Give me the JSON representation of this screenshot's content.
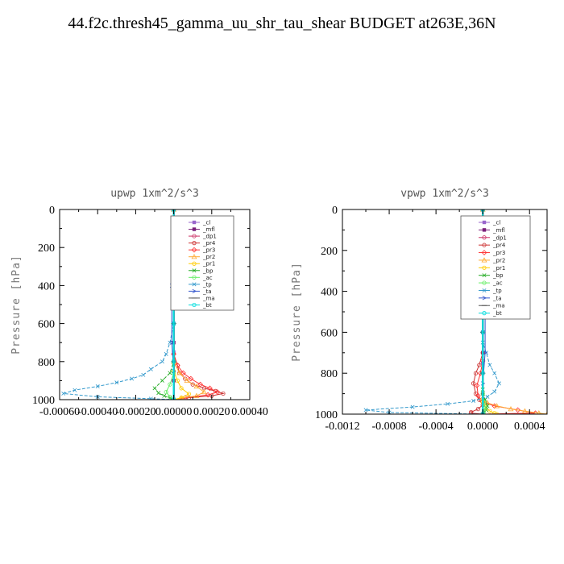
{
  "title": "44.f2c.thresh45_gamma_uu_shr_tau_shear  BUDGET at263E,36N",
  "chart_data": [
    {
      "type": "line",
      "title": "upwp   1xm^2/s^3",
      "xlabel": "",
      "ylabel": "Pressure  [hPa]",
      "xlim": [
        -0.0006,
        0.0004
      ],
      "ylim": [
        1000,
        0
      ],
      "xticks": [
        -0.0006,
        -0.0004,
        -0.0002,
        0.0,
        0.0002,
        0.0004
      ],
      "xtick_labels": [
        "-0.00060",
        "-0.00040",
        "-0.00020",
        "0.00000",
        "0.00020",
        "0.00040"
      ],
      "yticks": [
        0,
        200,
        400,
        600,
        800,
        1000
      ],
      "ytick_labels": [
        "0",
        "200",
        "400",
        "600",
        "800",
        "1000"
      ],
      "legend_position": "top-right",
      "series": [
        {
          "name": "_cl",
          "color": "#9966cc",
          "marker": "square",
          "x": [
            0,
            0,
            0,
            0,
            0,
            0,
            0,
            0
          ],
          "y": [
            0,
            150,
            300,
            450,
            600,
            750,
            900,
            1000
          ]
        },
        {
          "name": "_mfl",
          "color": "#7a1f7a",
          "marker": "square",
          "x": [
            0,
            0,
            0,
            0,
            0,
            0,
            0,
            0,
            0,
            0,
            0
          ],
          "y": [
            0,
            100,
            200,
            300,
            400,
            500,
            600,
            700,
            800,
            900,
            1000
          ]
        },
        {
          "name": "_dp1",
          "color": "#cc3366",
          "marker": "circle",
          "x": [
            0,
            0,
            0,
            0,
            0,
            0
          ],
          "y": [
            0,
            200,
            400,
            600,
            800,
            1000
          ]
        },
        {
          "name": "_pr4",
          "color": "#cc3333",
          "marker": "circle",
          "x": [
            0,
            0,
            0,
            0,
            2e-05,
            3e-05,
            6e-05,
            0.0001,
            0.00016,
            0.00022,
            0.00026,
            0.0002,
            8e-05,
            0
          ],
          "y": [
            0,
            200,
            500,
            760,
            820,
            860,
            890,
            920,
            940,
            955,
            968,
            980,
            990,
            1000
          ]
        },
        {
          "name": "_pr3",
          "color": "#ff3333",
          "marker": "diamond",
          "x": [
            0,
            0,
            2e-05,
            5e-05,
            9e-05,
            0.00014,
            0.00019,
            0.00023,
            0.00018,
            6e-05,
            0
          ],
          "y": [
            0,
            760,
            820,
            860,
            890,
            920,
            940,
            960,
            975,
            990,
            1000
          ]
        },
        {
          "name": "_pr2",
          "color": "#ffaa33",
          "marker": "triangle",
          "x": [
            0,
            0,
            3e-05,
            7e-05,
            0.00012,
            0.00016,
            0.00012,
            4e-05,
            0
          ],
          "y": [
            0,
            800,
            860,
            900,
            930,
            960,
            980,
            992,
            1000
          ]
        },
        {
          "name": "_pr1",
          "color": "#ffcc00",
          "marker": "circle",
          "x": [
            0,
            0,
            2e-05,
            4e-05,
            8e-05,
            4e-05,
            0
          ],
          "y": [
            0,
            850,
            900,
            940,
            970,
            990,
            1000
          ]
        },
        {
          "name": "_bp",
          "color": "#22aa22",
          "marker": "x",
          "x": [
            0,
            0,
            -2e-05,
            -6e-05,
            -0.0001,
            -8e-05,
            -5e-05,
            -2e-05,
            0
          ],
          "y": [
            0,
            800,
            860,
            900,
            940,
            965,
            980,
            992,
            1000
          ]
        },
        {
          "name": "_ac",
          "color": "#66ee66",
          "marker": "circle",
          "x": [
            0,
            0,
            -2e-05,
            -4e-05,
            -2e-05,
            0
          ],
          "y": [
            0,
            860,
            920,
            960,
            985,
            1000
          ]
        },
        {
          "name": "_tp",
          "color": "#3399cc",
          "marker": "x",
          "x": [
            0,
            0,
            -2e-05,
            -4e-05,
            -6e-05,
            -0.00012,
            -0.00016,
            -0.00022,
            -0.0003,
            -0.0004,
            -0.00052,
            -0.00058,
            -0.0004,
            -0.00012,
            0
          ],
          "y": [
            0,
            600,
            700,
            760,
            800,
            840,
            870,
            890,
            910,
            930,
            950,
            968,
            985,
            995,
            1000
          ]
        },
        {
          "name": "_ta",
          "color": "#3355cc",
          "marker": "arrow",
          "x": [
            0,
            -1e-05,
            -1e-05,
            0,
            0
          ],
          "y": [
            0,
            400,
            700,
            850,
            1000
          ]
        },
        {
          "name": "_ma",
          "color": "#555555",
          "marker": "dash",
          "x": [
            0,
            0,
            0,
            0,
            0,
            0
          ],
          "y": [
            0,
            200,
            400,
            600,
            800,
            1000
          ]
        },
        {
          "name": "_bt",
          "color": "#00dddd",
          "marker": "circle",
          "x": [
            0,
            0,
            0,
            0,
            0,
            0
          ],
          "y": [
            0,
            200,
            400,
            600,
            800,
            1000
          ]
        }
      ]
    },
    {
      "type": "line",
      "title": "vpwp   1xm^2/s^3",
      "xlabel": "",
      "ylabel": "Pressure  [hPa]",
      "xlim": [
        -0.0012,
        0.00055
      ],
      "ylim": [
        1000,
        0
      ],
      "xticks": [
        -0.0012,
        -0.0008,
        -0.0004,
        0.0,
        0.0004
      ],
      "xtick_labels": [
        "-0.0012",
        "-0.0008",
        "-0.0004",
        "0.0000",
        "0.0004"
      ],
      "yticks": [
        0,
        200,
        400,
        600,
        800,
        1000
      ],
      "ytick_labels": [
        "0",
        "200",
        "400",
        "600",
        "800",
        "1000"
      ],
      "legend_position": "top-right",
      "series": [
        {
          "name": "_cl",
          "color": "#9966cc",
          "marker": "square",
          "x": [
            0,
            0,
            0,
            0,
            0,
            0,
            0,
            0
          ],
          "y": [
            0,
            150,
            300,
            450,
            600,
            750,
            900,
            1000
          ]
        },
        {
          "name": "_mfl",
          "color": "#7a1f7a",
          "marker": "square",
          "x": [
            0,
            0,
            0,
            0,
            0,
            0,
            0,
            0,
            0,
            0,
            0
          ],
          "y": [
            0,
            100,
            200,
            300,
            400,
            500,
            600,
            700,
            800,
            900,
            1000
          ]
        },
        {
          "name": "_dp1",
          "color": "#cc3366",
          "marker": "circle",
          "x": [
            0,
            0,
            0,
            0,
            0,
            0
          ],
          "y": [
            0,
            200,
            400,
            600,
            800,
            1000
          ]
        },
        {
          "name": "_pr4",
          "color": "#cc3333",
          "marker": "circle",
          "x": [
            0,
            0,
            -3e-05,
            -6e-05,
            -8e-05,
            -6e-05,
            -3e-05,
            0,
            -4e-05,
            -0.0001,
            -0.0001,
            0
          ],
          "y": [
            0,
            700,
            760,
            800,
            850,
            900,
            930,
            955,
            975,
            990,
            995,
            1000
          ]
        },
        {
          "name": "_pr3",
          "color": "#ff3333",
          "marker": "diamond",
          "x": [
            0,
            0,
            -2e-05,
            -5e-05,
            -4e-05,
            0,
            0.0001,
            0.0003,
            0.00045,
            0
          ],
          "y": [
            0,
            740,
            800,
            860,
            910,
            940,
            960,
            980,
            995,
            1000
          ]
        },
        {
          "name": "_pr2",
          "color": "#ffaa33",
          "marker": "triangle",
          "x": [
            0,
            0,
            4e-05,
            0.00012,
            0.00024,
            0.00036,
            0.00048,
            0.00055
          ],
          "y": [
            0,
            920,
            945,
            960,
            975,
            985,
            995,
            1000
          ]
        },
        {
          "name": "_pr1",
          "color": "#ffcc00",
          "marker": "circle",
          "x": [
            0,
            0,
            2e-05,
            6e-05,
            0.0001,
            0.00012
          ],
          "y": [
            0,
            940,
            965,
            985,
            995,
            1000
          ]
        },
        {
          "name": "_bp",
          "color": "#22aa22",
          "marker": "x",
          "x": [
            0,
            0,
            2e-05,
            4e-05,
            3e-05,
            1e-05,
            0
          ],
          "y": [
            0,
            880,
            930,
            960,
            980,
            992,
            1000
          ]
        },
        {
          "name": "_ac",
          "color": "#66ee66",
          "marker": "circle",
          "x": [
            0,
            0,
            1e-05,
            2e-05,
            1e-05,
            0
          ],
          "y": [
            0,
            900,
            940,
            970,
            990,
            1000
          ]
        },
        {
          "name": "_tp",
          "color": "#3399cc",
          "marker": "x",
          "x": [
            0,
            0,
            3e-05,
            6e-05,
            0.0001,
            0.00014,
            0.0001,
            4e-05,
            -8e-05,
            -0.0003,
            -0.0006,
            -0.001,
            -0.0008,
            0
          ],
          "y": [
            0,
            650,
            700,
            760,
            800,
            850,
            890,
            915,
            935,
            950,
            965,
            980,
            992,
            1000
          ]
        },
        {
          "name": "_ta",
          "color": "#3355cc",
          "marker": "arrow",
          "x": [
            0,
            2e-05,
            2e-05,
            0,
            0
          ],
          "y": [
            0,
            400,
            700,
            850,
            1000
          ]
        },
        {
          "name": "_ma",
          "color": "#555555",
          "marker": "dash",
          "x": [
            0,
            0,
            0,
            0,
            0,
            0
          ],
          "y": [
            0,
            200,
            400,
            600,
            800,
            1000
          ]
        },
        {
          "name": "_bt",
          "color": "#00dddd",
          "marker": "circle",
          "x": [
            0,
            0,
            0,
            0,
            0,
            0
          ],
          "y": [
            0,
            200,
            400,
            600,
            800,
            1000
          ]
        }
      ]
    }
  ]
}
